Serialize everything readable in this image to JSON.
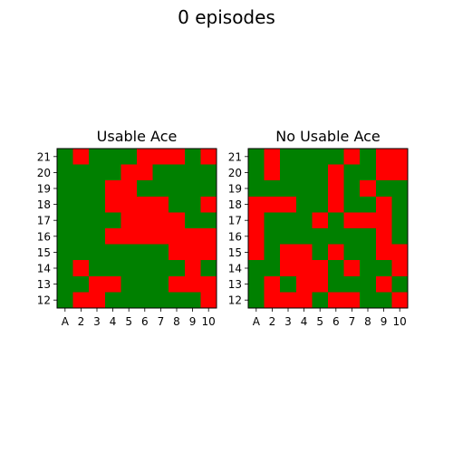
{
  "figure": {
    "title": "0 episodes"
  },
  "chart_data": [
    {
      "type": "heatmap",
      "title": "Usable Ace",
      "x_categories": [
        "A",
        "2",
        "3",
        "4",
        "5",
        "6",
        "7",
        "8",
        "9",
        "10"
      ],
      "y_categories": [
        "21",
        "20",
        "19",
        "18",
        "17",
        "16",
        "15",
        "14",
        "13",
        "12"
      ],
      "value_colors": {
        "0": "#ff0000",
        "1": "#008000"
      },
      "grid": [
        [
          1,
          0,
          1,
          1,
          1,
          0,
          0,
          0,
          1,
          0
        ],
        [
          1,
          1,
          1,
          1,
          0,
          0,
          1,
          1,
          1,
          1
        ],
        [
          1,
          1,
          1,
          0,
          0,
          1,
          1,
          1,
          1,
          1
        ],
        [
          1,
          1,
          1,
          0,
          0,
          0,
          0,
          1,
          1,
          0
        ],
        [
          1,
          1,
          1,
          1,
          0,
          0,
          0,
          0,
          1,
          1
        ],
        [
          1,
          1,
          1,
          0,
          0,
          0,
          0,
          0,
          0,
          0
        ],
        [
          1,
          1,
          1,
          1,
          1,
          1,
          1,
          0,
          0,
          0
        ],
        [
          1,
          0,
          1,
          1,
          1,
          1,
          1,
          1,
          0,
          1
        ],
        [
          1,
          1,
          0,
          0,
          1,
          1,
          1,
          0,
          0,
          0
        ],
        [
          1,
          0,
          0,
          1,
          1,
          1,
          1,
          1,
          1,
          0
        ]
      ]
    },
    {
      "type": "heatmap",
      "title": "No Usable Ace",
      "x_categories": [
        "A",
        "2",
        "3",
        "4",
        "5",
        "6",
        "7",
        "8",
        "9",
        "10"
      ],
      "y_categories": [
        "21",
        "20",
        "19",
        "18",
        "17",
        "16",
        "15",
        "14",
        "13",
        "12"
      ],
      "value_colors": {
        "0": "#ff0000",
        "1": "#008000"
      },
      "grid": [
        [
          1,
          0,
          1,
          1,
          1,
          1,
          0,
          1,
          0,
          0
        ],
        [
          1,
          0,
          1,
          1,
          1,
          0,
          1,
          1,
          0,
          0
        ],
        [
          1,
          1,
          1,
          1,
          1,
          0,
          1,
          0,
          1,
          1
        ],
        [
          0,
          0,
          0,
          1,
          1,
          0,
          1,
          1,
          0,
          1
        ],
        [
          0,
          1,
          1,
          1,
          0,
          1,
          0,
          0,
          0,
          1
        ],
        [
          0,
          1,
          1,
          1,
          1,
          1,
          1,
          1,
          0,
          1
        ],
        [
          0,
          1,
          0,
          0,
          1,
          0,
          1,
          1,
          0,
          0
        ],
        [
          1,
          1,
          0,
          0,
          0,
          1,
          0,
          1,
          1,
          0
        ],
        [
          1,
          0,
          1,
          0,
          0,
          1,
          1,
          1,
          0,
          1
        ],
        [
          1,
          0,
          0,
          0,
          1,
          0,
          0,
          1,
          1,
          0
        ]
      ]
    }
  ]
}
